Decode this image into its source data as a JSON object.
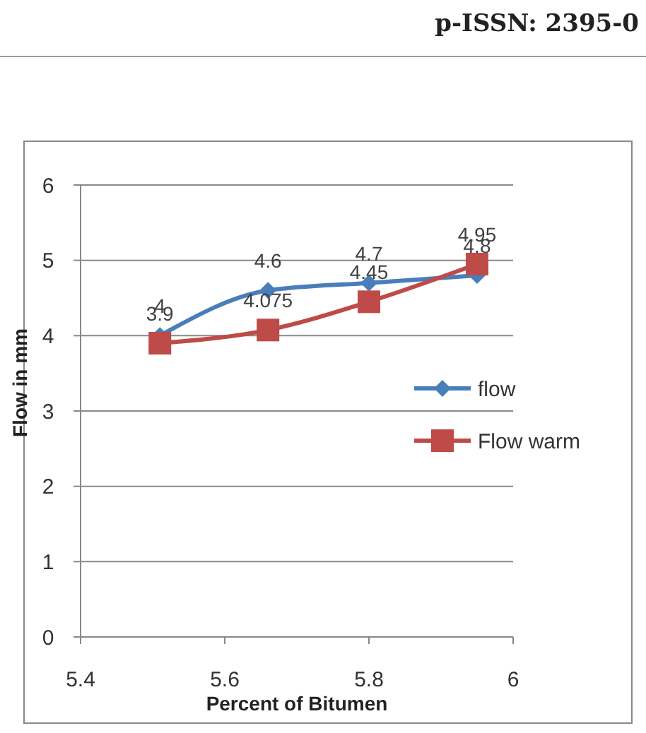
{
  "chart_data": {
    "type": "line",
    "xlabel": "Percent of Bitumen",
    "ylabel": "Flow in mm",
    "annotations": [
      "p-ISSN: 2395-0"
    ],
    "xlim": [
      5.4,
      6
    ],
    "xticks": [
      5.4,
      5.6,
      5.8,
      6
    ],
    "ylim": [
      0,
      6
    ],
    "yticks": [
      0,
      1,
      2,
      3,
      4,
      5,
      6
    ],
    "grid": "y",
    "legend": "right",
    "data_labels": true,
    "series": [
      {
        "name": "flow",
        "color": "#4a7ebb",
        "marker": "diamond",
        "x": [
          5.51,
          5.66,
          5.8,
          5.95
        ],
        "values": [
          4,
          4.6,
          4.7,
          4.8
        ]
      },
      {
        "name": "Flow warm",
        "color": "#be4b48",
        "marker": "square",
        "x": [
          5.51,
          5.66,
          5.8,
          5.95
        ],
        "values": [
          3.9,
          4.075,
          4.45,
          4.95
        ]
      }
    ]
  }
}
